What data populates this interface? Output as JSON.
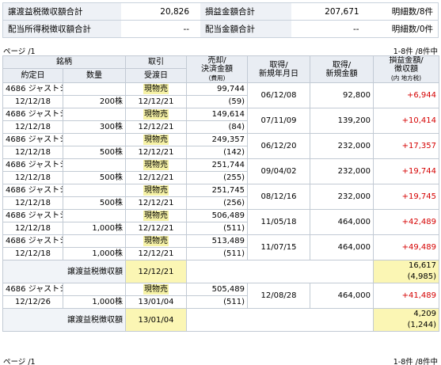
{
  "summary": {
    "row1": {
      "label1": "譲渡益税徴収額合計",
      "value1": "20,826",
      "label2": "損益金額合計",
      "value2": "207,671",
      "count": "明細数/8件"
    },
    "row2": {
      "label1": "配当所得税徴収額合計",
      "value1": "--",
      "label2": "配当金額合計",
      "value2": "--",
      "count": "明細数/0件"
    }
  },
  "pager": {
    "page": "ページ /1",
    "count": "1-8件 /8件中"
  },
  "headers": {
    "brand": "銘柄",
    "contract_date": "約定日",
    "quantity": "数量",
    "trade": "取引",
    "delivery_date": "受渡日",
    "sale_1": "売却/",
    "sale_2": "決済金額",
    "sale_3": "(費用)",
    "acq_date_1": "取得/",
    "acq_date_2": "新規年月日",
    "acq_amount_1": "取得/",
    "acq_amount_2": "新規金額",
    "pl_1": "損益金額/",
    "pl_2": "徴収額",
    "pl_3": "(内 地方税)"
  },
  "rows": [
    {
      "brand": "4686 ジャストシステム",
      "trade": "現物売",
      "sale": "99,744",
      "acq_date": "06/12/08",
      "acq_amount": "92,800",
      "pl": "+6,944",
      "contract_date": "12/12/18",
      "quantity": "200株",
      "delivery": "12/12/21",
      "fee": "(59)"
    },
    {
      "brand": "4686 ジャストシステム",
      "trade": "現物売",
      "sale": "149,614",
      "acq_date": "07/11/09",
      "acq_amount": "139,200",
      "pl": "+10,414",
      "contract_date": "12/12/18",
      "quantity": "300株",
      "delivery": "12/12/21",
      "fee": "(84)"
    },
    {
      "brand": "4686 ジャストシステム",
      "trade": "現物売",
      "sale": "249,357",
      "acq_date": "06/12/20",
      "acq_amount": "232,000",
      "pl": "+17,357",
      "contract_date": "12/12/18",
      "quantity": "500株",
      "delivery": "12/12/21",
      "fee": "(142)"
    },
    {
      "brand": "4686 ジャストシステム",
      "trade": "現物売",
      "sale": "251,744",
      "acq_date": "09/04/02",
      "acq_amount": "232,000",
      "pl": "+19,744",
      "contract_date": "12/12/18",
      "quantity": "500株",
      "delivery": "12/12/21",
      "fee": "(255)"
    },
    {
      "brand": "4686 ジャストシステム",
      "trade": "現物売",
      "sale": "251,745",
      "acq_date": "08/12/16",
      "acq_amount": "232,000",
      "pl": "+19,745",
      "contract_date": "12/12/18",
      "quantity": "500株",
      "delivery": "12/12/21",
      "fee": "(256)"
    },
    {
      "brand": "4686 ジャストシステム",
      "trade": "現物売",
      "sale": "506,489",
      "acq_date": "11/05/18",
      "acq_amount": "464,000",
      "pl": "+42,489",
      "contract_date": "12/12/18",
      "quantity": "1,000株",
      "delivery": "12/12/21",
      "fee": "(511)"
    },
    {
      "brand": "4686 ジャストシステム",
      "trade": "現物売",
      "sale": "513,489",
      "acq_date": "11/07/15",
      "acq_amount": "464,000",
      "pl": "+49,489",
      "contract_date": "12/12/18",
      "quantity": "1,000株",
      "delivery": "12/12/21",
      "fee": "(511)"
    }
  ],
  "subtotal1": {
    "label": "譲渡益税徴収額",
    "date": "12/12/21",
    "amount": "16,617",
    "local": "(4,985)"
  },
  "row8": {
    "brand": "4686 ジャストシステム",
    "trade": "現物売",
    "sale": "505,489",
    "acq_date": "12/08/28",
    "acq_amount": "464,000",
    "pl": "+41,489",
    "contract_date": "12/12/26",
    "quantity": "1,000株",
    "delivery": "13/01/04",
    "fee": "(511)"
  },
  "subtotal2": {
    "label": "譲渡益税徴収額",
    "date": "13/01/04",
    "amount": "4,209",
    "local": "(1,244)"
  }
}
